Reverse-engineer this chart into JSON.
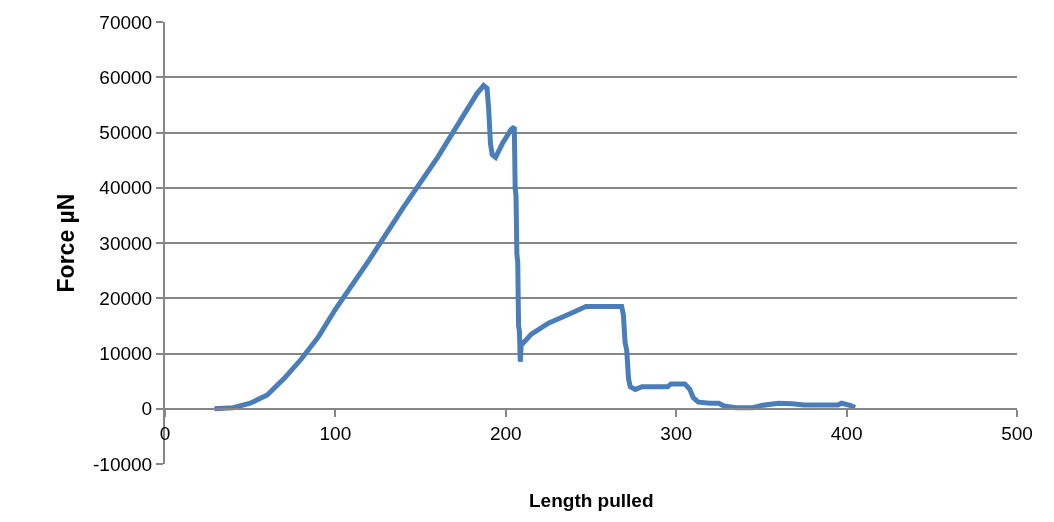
{
  "chart_data": {
    "type": "line",
    "xlabel": "Length pulled",
    "ylabel": "Force µN",
    "xlim": [
      0,
      500
    ],
    "xticks": [
      0,
      100,
      200,
      300,
      400,
      500
    ],
    "ylim": [
      -10000,
      70000
    ],
    "yticks": [
      -10000,
      0,
      10000,
      20000,
      30000,
      40000,
      50000,
      60000,
      70000
    ],
    "grid": "y",
    "marker": "none",
    "line_style": "solid",
    "series": [
      {
        "color": "#4a7ebb",
        "x": [
          29,
          40,
          50,
          60,
          70,
          80,
          90,
          100,
          120,
          140,
          160,
          175,
          183,
          187,
          189,
          190,
          191,
          192,
          194,
          198,
          203,
          205,
          205.5,
          206,
          206.5,
          207,
          207.5,
          208,
          208.5,
          209,
          215,
          225,
          240,
          247,
          268,
          269,
          270,
          271,
          272,
          273,
          276,
          280,
          295,
          297,
          305,
          308,
          310,
          313,
          320,
          325,
          328,
          335,
          345,
          350,
          360,
          368,
          375,
          395,
          397,
          402,
          405
        ],
        "values": [
          0,
          200,
          1000,
          2500,
          5500,
          9000,
          13000,
          18000,
          27000,
          36500,
          45500,
          53000,
          57000,
          58500,
          58000,
          54000,
          48000,
          46000,
          45500,
          48000,
          50500,
          51000,
          40000,
          38500,
          28000,
          26500,
          15000,
          14000,
          8500,
          11500,
          13500,
          15500,
          17500,
          18500,
          18500,
          17000,
          12000,
          10500,
          5500,
          4000,
          3500,
          4000,
          4000,
          4500,
          4500,
          3500,
          2000,
          1200,
          1000,
          1000,
          500,
          200,
          200,
          600,
          1000,
          900,
          700,
          700,
          1000,
          600,
          200
        ]
      }
    ]
  }
}
